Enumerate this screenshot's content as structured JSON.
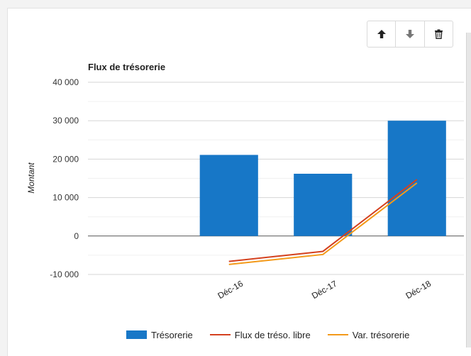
{
  "toolbar": {
    "move_up_icon": "arrow-up-icon",
    "move_down_icon": "arrow-down-icon",
    "delete_icon": "trash-icon"
  },
  "chart_data": {
    "type": "bar",
    "title": "Flux de trésorerie",
    "ylabel": "Montant",
    "xlabel": "",
    "ylim": [
      -10000,
      40000
    ],
    "yticks": [
      {
        "value": 40000,
        "label": "40 000"
      },
      {
        "value": 30000,
        "label": "30 000"
      },
      {
        "value": 20000,
        "label": "20 000"
      },
      {
        "value": 10000,
        "label": "10 000"
      },
      {
        "value": 0,
        "label": "0"
      },
      {
        "value": -10000,
        "label": "-10 000"
      }
    ],
    "categories": [
      "",
      "Déc-16",
      "Déc-17",
      "Déc-18"
    ],
    "series": [
      {
        "name": "Trésorerie",
        "kind": "bar",
        "color": "#1777c7",
        "values": [
          null,
          21100,
          16200,
          30000
        ]
      },
      {
        "name": "Flux de tréso. libre",
        "kind": "line",
        "color": "#d4411f",
        "values": [
          null,
          -6600,
          -4000,
          14700
        ]
      },
      {
        "name": "Var. trésorerie",
        "kind": "line",
        "color": "#f39a1a",
        "values": [
          null,
          -7400,
          -4800,
          13800
        ]
      }
    ],
    "grid": true,
    "legend_position": "bottom"
  }
}
